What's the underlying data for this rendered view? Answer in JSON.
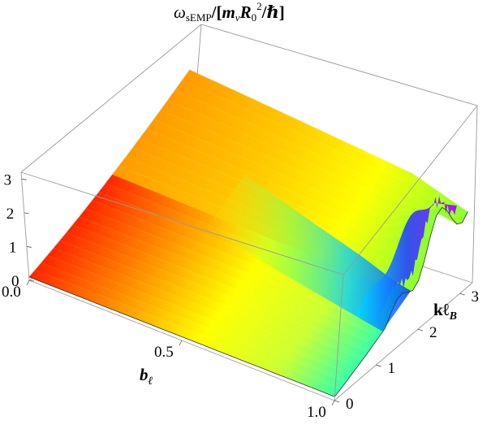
{
  "chart_data": {
    "type": "surface3d",
    "title": "ω_sEMP/[m_v R_0^2/ℏ]",
    "title_parts": {
      "omega": "ω",
      "sub": "sEMP",
      "slash1": "/[",
      "m": "m",
      "m_sub": "v",
      "R": "R",
      "R_sub": "0",
      "R_sup": "2",
      "slash2": "/",
      "hbar": "ℏ",
      "close": "]"
    },
    "xlabel": "b",
    "xlabel_sub": "ℓ",
    "ylabel": "kℓ",
    "ylabel_sub": "B",
    "xlim": [
      0.0,
      1.0
    ],
    "ylim": [
      0,
      3.3
    ],
    "zlim": [
      0,
      3.2
    ],
    "x_ticks": [
      "0.0",
      "0.5",
      "1.0"
    ],
    "y_ticks": [
      "0",
      "1",
      "2",
      "3"
    ],
    "z_ticks": [
      "0",
      "1",
      "2",
      "3"
    ],
    "color_scheme": "rainbow",
    "surface_description": "omega rises approximately linearly with k, decreases with b; near b≈1 a sharp oscillatory ridge appears at k≈2–3",
    "grid": false,
    "legend": "none"
  }
}
